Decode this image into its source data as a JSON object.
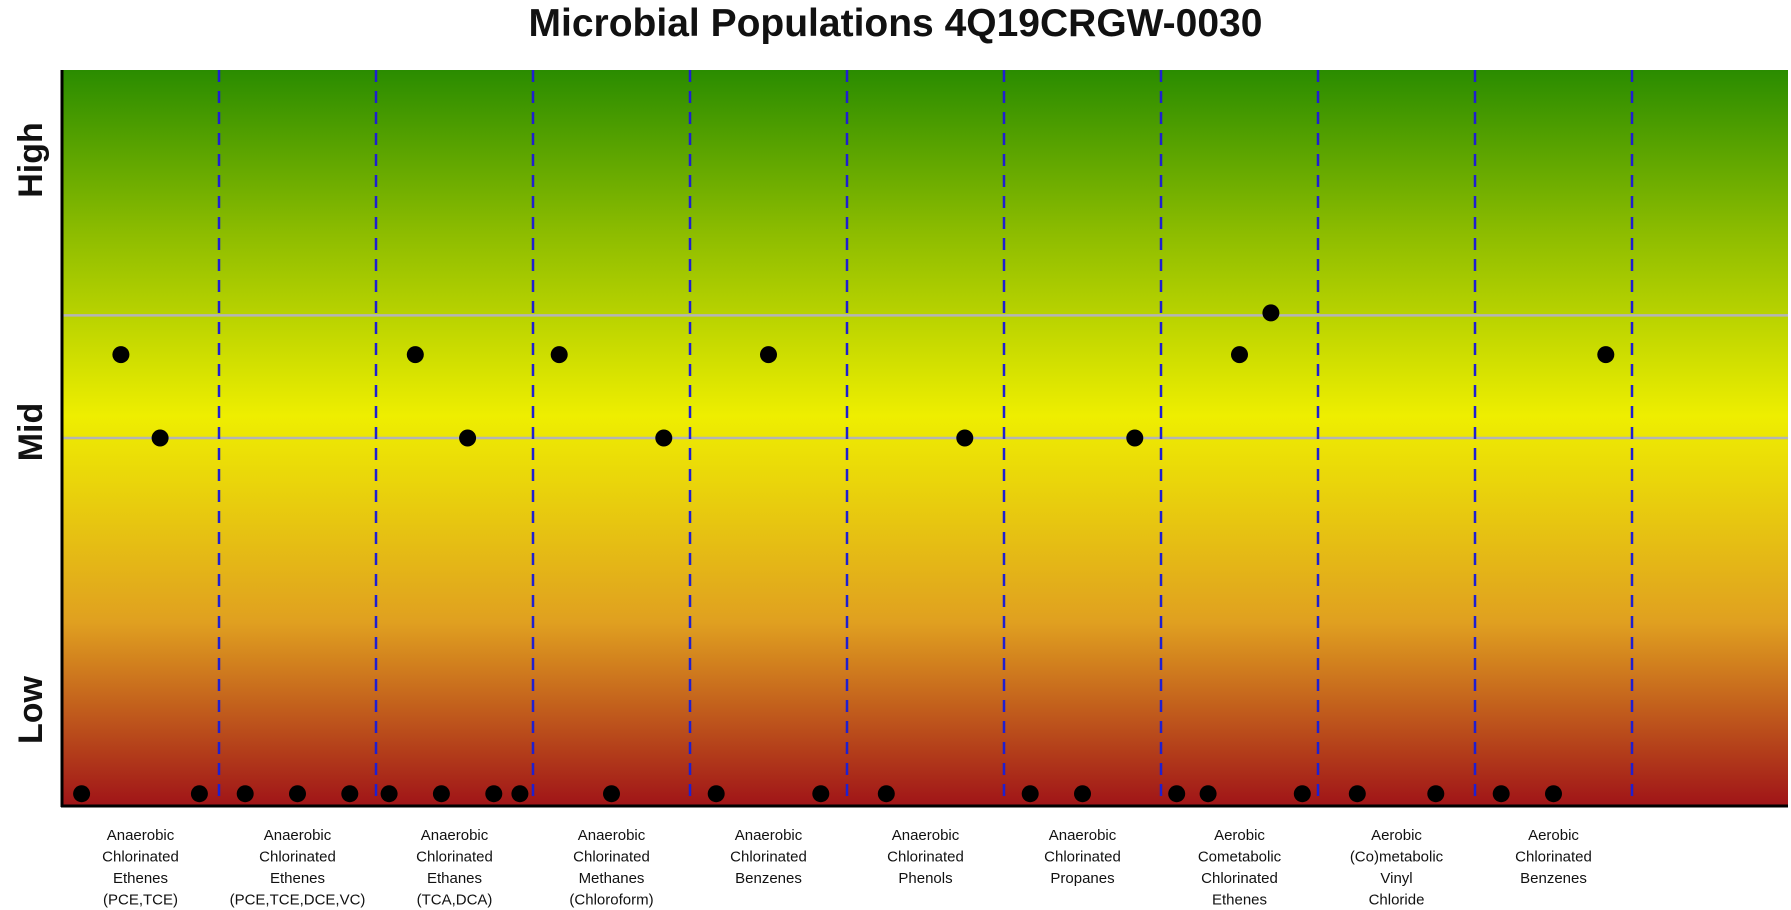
{
  "chart_data": {
    "type": "scatter",
    "title": "Microbial Populations 4Q19CRGW-0030",
    "xlabel": "",
    "ylabel": "",
    "y_levels": [
      "Low",
      "Mid",
      "High"
    ],
    "ylim": [
      0,
      3
    ],
    "grid": "horizontal lines at 1.5 and 2.0; dashed vertical category separators",
    "background": "vertical gradient from dark red (Low) through yellow (Mid) to green (High)",
    "colors": {
      "top": "#2a8c00",
      "upper": "#8cbc00",
      "middle": "#eeee00",
      "lower": "#e0a020",
      "bottom": "#a01418",
      "separator": "#1f1fd0",
      "gridline": "#b4b4b4",
      "point": "#000000"
    },
    "categories": [
      {
        "label": [
          "Anaerobic",
          "Chlorinated",
          "Ethenes",
          "(PCE,TCE)"
        ],
        "values": [
          0.05,
          1.84,
          1.5,
          0.05
        ]
      },
      {
        "label": [
          "Anaerobic",
          "Chlorinated",
          "Ethenes",
          "(PCE,TCE,DCE,VC)"
        ],
        "values": [
          0.05,
          0.05,
          0.05
        ]
      },
      {
        "label": [
          "Anaerobic",
          "Chlorinated",
          "Ethanes",
          "(TCA,DCA)"
        ],
        "values": [
          0.05,
          1.84,
          0.05,
          1.5,
          0.05,
          0.05
        ]
      },
      {
        "label": [
          "Anaerobic",
          "Chlorinated",
          "Methanes",
          "(Chloroform)"
        ],
        "values": [
          1.84,
          0.05,
          1.5
        ]
      },
      {
        "label": [
          "Anaerobic",
          "Chlorinated",
          "Benzenes"
        ],
        "values": [
          0.05,
          1.84,
          0.05
        ]
      },
      {
        "label": [
          "Anaerobic",
          "Chlorinated",
          "Phenols"
        ],
        "values": [
          0.05,
          1.5
        ]
      },
      {
        "label": [
          "Anaerobic",
          "Chlorinated",
          "Propanes"
        ],
        "values": [
          0.05,
          0.05,
          1.5
        ]
      },
      {
        "label": [
          "Aerobic",
          "Cometabolic",
          "Chlorinated",
          "Ethenes"
        ],
        "values": [
          0.05,
          0.05,
          1.84,
          2.01,
          0.05
        ]
      },
      {
        "label": [
          "Aerobic",
          "(Co)metabolic",
          "Vinyl",
          "Chloride"
        ],
        "values": [
          0.05,
          0.05
        ]
      },
      {
        "label": [
          "Aerobic",
          "Chlorinated",
          "Benzenes"
        ],
        "values": [
          0.05,
          0.05,
          1.84
        ]
      }
    ]
  }
}
